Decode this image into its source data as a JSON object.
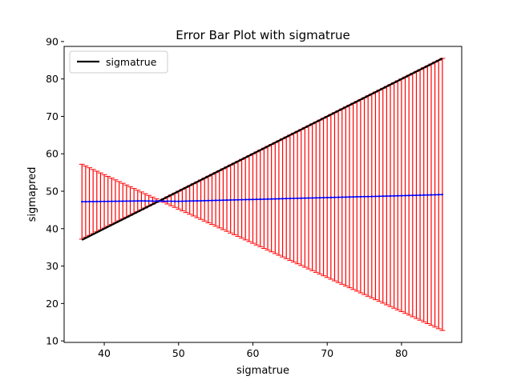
{
  "chart_data": {
    "type": "line",
    "title": "Error Bar Plot with sigmatrue",
    "xlabel": "sigmatrue",
    "ylabel": "sigmapred",
    "xlim": [
      34.6,
      88.1
    ],
    "ylim": [
      9.6,
      88.7
    ],
    "xticks": [
      40,
      50,
      60,
      70,
      80
    ],
    "yticks": [
      10,
      20,
      30,
      40,
      50,
      60,
      70,
      80,
      90
    ],
    "grid": false,
    "legend": {
      "location": "top-left",
      "entries": [
        "sigmatrue"
      ]
    },
    "x_range": [
      37,
      85.5
    ],
    "x_step": 0.5,
    "series": [
      {
        "name": "sigmatrue",
        "color": "#000000",
        "style": "solid",
        "description_values": {
          "x_start": 37,
          "y_start": 37,
          "x_end": 85.5,
          "y_end": 85.5
        }
      },
      {
        "color": "#0000ff",
        "style": "solid-with-markers",
        "values_at_x": {
          "37": 47.2,
          "45": 47.4,
          "50": 47.3,
          "60": 47.8,
          "70": 48.3,
          "80": 48.8,
          "85.5": 49.1
        }
      }
    ],
    "error_bars": {
      "color": "#ff0000",
      "lower_at_x": {
        "37": 37.2,
        "47.5": 47.5,
        "85.5": 12.8
      },
      "upper_at_x": {
        "37": 57.2,
        "47.5": 47.5,
        "85.5": 85.5
      }
    }
  }
}
